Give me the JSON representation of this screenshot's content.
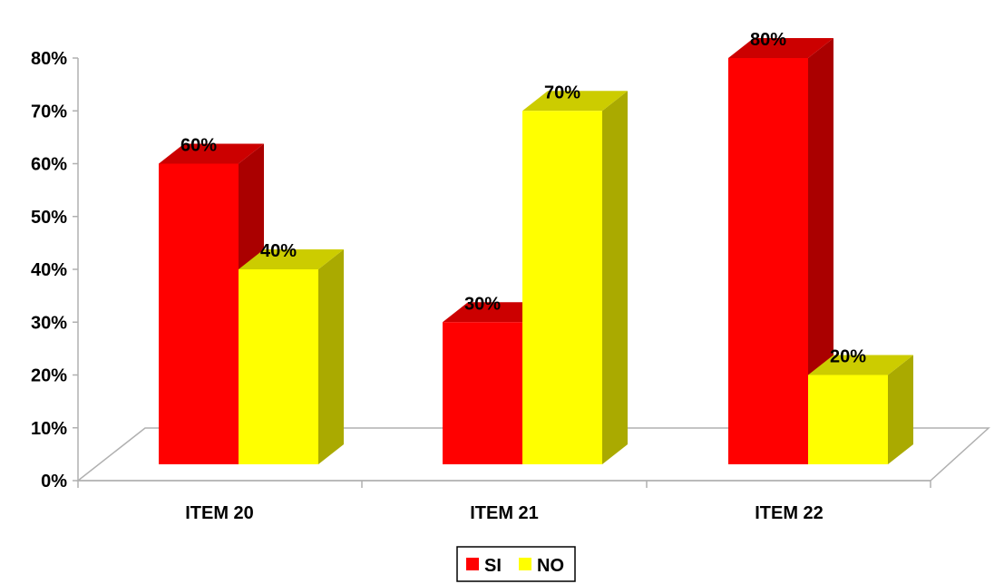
{
  "chart_data": {
    "type": "bar",
    "categories": [
      "ITEM 20",
      "ITEM 21",
      "ITEM 22"
    ],
    "series": [
      {
        "name": "SI",
        "values": [
          60,
          30,
          80
        ],
        "color": "#ff0000",
        "side_color": "#aa0000",
        "top_color": "#cc0000"
      },
      {
        "name": "NO",
        "values": [
          40,
          70,
          20
        ],
        "color": "#ffff00",
        "side_color": "#aaaa00",
        "top_color": "#cccc00"
      }
    ],
    "value_labels": [
      [
        "60%",
        "30%",
        "80%"
      ],
      [
        "40%",
        "70%",
        "20%"
      ]
    ],
    "y_ticks": [
      "0%",
      "10%",
      "20%",
      "30%",
      "40%",
      "50%",
      "60%",
      "70%",
      "80%"
    ],
    "ylim": [
      0,
      80
    ],
    "unit": "%",
    "grid": false,
    "legend_position": "bottom-center",
    "style": "3d-clustered-column"
  }
}
